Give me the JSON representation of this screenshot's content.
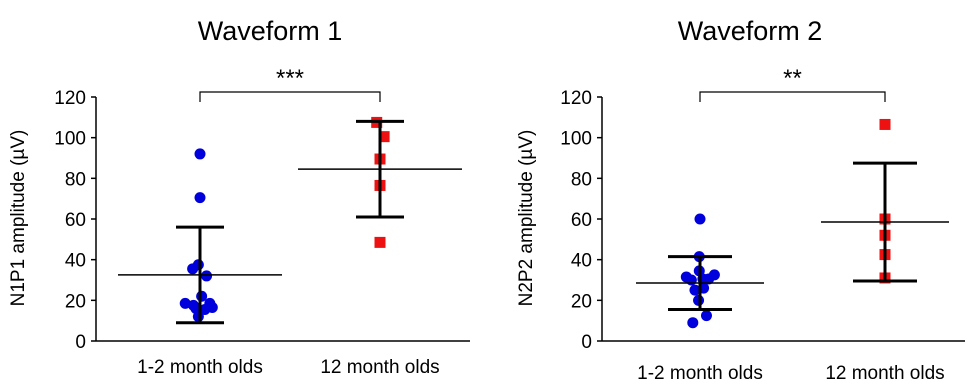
{
  "chart_data": [
    {
      "type": "scatter",
      "title": "Waveform 1",
      "xlabel": "",
      "ylabel": "N1P1 amplitude (µV)",
      "ylim": [
        0,
        120
      ],
      "yticks": [
        0,
        20,
        40,
        60,
        80,
        100,
        120
      ],
      "categories": [
        "1-2 month olds",
        "12 month olds"
      ],
      "grid": false,
      "series": [
        {
          "category": "1-2 month olds",
          "marker": "circle",
          "color": "#0000dd",
          "points": [
            {
              "x": 0,
              "y": 92
            },
            {
              "x": 0,
              "y": 70.5
            },
            {
              "x": -0.09,
              "y": 35.5
            },
            {
              "x": -0.02,
              "y": 37.5
            },
            {
              "x": 0.08,
              "y": 32
            },
            {
              "x": -0.18,
              "y": 18.5
            },
            {
              "x": -0.08,
              "y": 17.5
            },
            {
              "x": 0.02,
              "y": 22
            },
            {
              "x": 0.12,
              "y": 18.5
            },
            {
              "x": -0.05,
              "y": 16
            },
            {
              "x": 0.06,
              "y": 15.5
            },
            {
              "x": 0.15,
              "y": 16.5
            },
            {
              "x": -0.02,
              "y": 12
            }
          ],
          "mean": 32.5,
          "error_upper": 56,
          "error_lower": 9
        },
        {
          "category": "12 month olds",
          "marker": "square",
          "color": "#ee1111",
          "points": [
            {
              "x": -0.04,
              "y": 107.5
            },
            {
              "x": 0.05,
              "y": 100.5
            },
            {
              "x": 0,
              "y": 89.5
            },
            {
              "x": 0,
              "y": 76.5
            },
            {
              "x": 0,
              "y": 48.5
            }
          ],
          "mean": 84.5,
          "error_upper": 108,
          "error_lower": 61
        }
      ],
      "significance": {
        "label": "***",
        "from": "1-2 month olds",
        "to": "12 month olds"
      }
    },
    {
      "type": "scatter",
      "title": "Waveform 2",
      "xlabel": "",
      "ylabel": "N2P2 amplitude (µV)",
      "ylim": [
        0,
        120
      ],
      "yticks": [
        0,
        20,
        40,
        60,
        80,
        100,
        120
      ],
      "categories": [
        "1-2 month olds",
        "12 month olds"
      ],
      "grid": false,
      "series": [
        {
          "category": "1-2 month olds",
          "marker": "circle",
          "color": "#0000dd",
          "points": [
            {
              "x": 0,
              "y": 60
            },
            {
              "x": -0.01,
              "y": 41.5
            },
            {
              "x": -0.01,
              "y": 34.5
            },
            {
              "x": -0.19,
              "y": 31.5
            },
            {
              "x": -0.12,
              "y": 30
            },
            {
              "x": 0.04,
              "y": 30.5
            },
            {
              "x": 0.12,
              "y": 30.5
            },
            {
              "x": 0.2,
              "y": 32.5
            },
            {
              "x": -0.07,
              "y": 25
            },
            {
              "x": 0.05,
              "y": 26
            },
            {
              "x": -0.02,
              "y": 20
            },
            {
              "x": 0.09,
              "y": 12.5
            },
            {
              "x": -0.1,
              "y": 9
            }
          ],
          "mean": 28.5,
          "error_upper": 41.5,
          "error_lower": 15.5
        },
        {
          "category": "12 month olds",
          "marker": "square",
          "color": "#ee1111",
          "points": [
            {
              "x": 0,
              "y": 106.5
            },
            {
              "x": 0,
              "y": 60
            },
            {
              "x": 0,
              "y": 52
            },
            {
              "x": 0,
              "y": 42.5
            },
            {
              "x": 0,
              "y": 31
            }
          ],
          "mean": 58.5,
          "error_upper": 87.5,
          "error_lower": 29.5
        }
      ],
      "significance": {
        "label": "**",
        "from": "1-2 month olds",
        "to": "12 month olds"
      }
    }
  ]
}
